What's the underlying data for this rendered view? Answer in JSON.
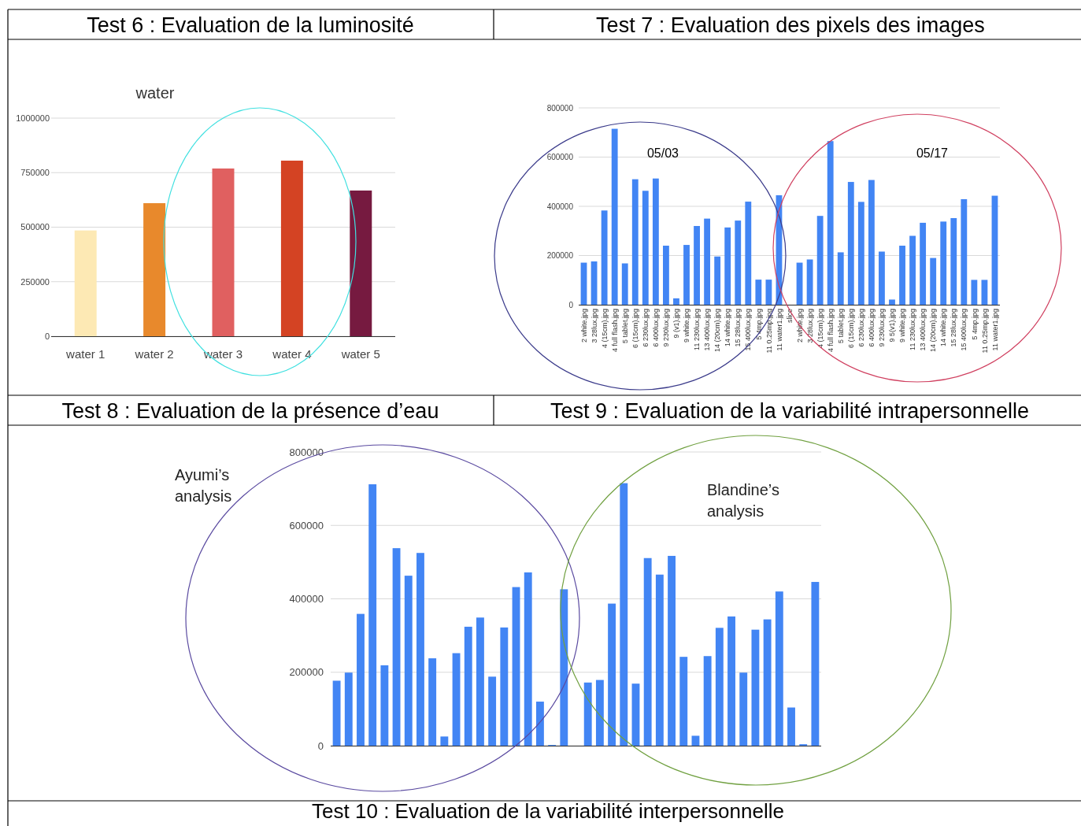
{
  "chart_data": [
    {
      "type": "bar",
      "title": "water",
      "categories": [
        "water 1",
        "water 2",
        "water 3",
        "water 4",
        "water 5"
      ],
      "values": [
        485000,
        610000,
        769000,
        805000,
        668000
      ],
      "colors": [
        "#fde9b4",
        "#e8892c",
        "#e06060",
        "#d44323",
        "#761a40"
      ],
      "ylim": [
        0,
        1000000
      ],
      "yticks": [
        0,
        250000,
        500000,
        750000,
        1000000
      ],
      "grid": "y",
      "annotations": [
        "Test 6 : Evaluation de la luminosité"
      ]
    },
    {
      "type": "bar",
      "categories": [
        "2 white.jpg",
        "3 28lux.jpg",
        "4 (15cm).jpg",
        "4 full flash.jpg",
        "5 tablet.jpg",
        "6 (15cm).jpg",
        "6 230lux.jpg",
        "6 400lux.jpg",
        "9 230lux.jpg",
        "9 (v1).jpg",
        "9 white.jpg",
        "11 230lux.jpg",
        "13 400lux.jpg",
        "14 (20cm).jpg",
        "14 white.jpg",
        "15 28lux.jpg",
        "15 400lux.jpg",
        "5 4mp.jpg",
        "11 0.25mp.jpg",
        "11 water1.jpg",
        "slice",
        "2 white.jpg",
        "3 28lux.jpg",
        "4 (15cm).jpg",
        "4 full flash.jpg",
        "5 tablet.jpg",
        "6 (15cm).jpg",
        "6 230lux.jpg",
        "6 400lux.jpg",
        "9 230lux.jpg",
        "9 5(v1).jpg",
        "9 white.jpg",
        "11 230lux.jpg",
        "13 400lux.jpg",
        "14 (20cm).jpg",
        "14 white.jpg",
        "15 28lux.jpg",
        "15 400lux.jpg",
        "5 4mp.jpg",
        "11 0.25mp.jpg",
        "11 water1.jpg"
      ],
      "values": [
        171000,
        176000,
        383000,
        715000,
        168000,
        510000,
        463000,
        513000,
        240000,
        26000,
        243000,
        320000,
        350000,
        196000,
        314000,
        342000,
        419000,
        102000,
        102000,
        445000,
        null,
        171000,
        184000,
        361000,
        665000,
        213000,
        499000,
        418000,
        507000,
        216000,
        21000,
        240000,
        280000,
        333000,
        190000,
        338000,
        352000,
        429000,
        101000,
        101000,
        443000
      ],
      "color": "#4285f4",
      "ylim": [
        0,
        800000
      ],
      "yticks": [
        0,
        200000,
        400000,
        600000,
        800000
      ],
      "grid": "y",
      "annotations": [
        "Test 7 : Evaluation des pixels des images",
        "05/03",
        "05/17"
      ]
    },
    {
      "type": "bar",
      "categories": [
        null,
        null,
        null,
        null,
        null,
        null,
        null,
        null,
        null,
        null,
        null,
        null,
        null,
        null,
        null,
        null,
        null,
        null,
        null,
        null,
        null,
        null,
        null,
        null,
        null,
        null,
        null,
        null,
        null,
        null,
        null,
        null,
        null,
        null,
        null,
        null,
        null,
        null,
        null,
        null,
        null
      ],
      "values": [
        177000,
        199000,
        359000,
        712000,
        219000,
        538000,
        463000,
        525000,
        238000,
        25000,
        252000,
        324000,
        349000,
        188000,
        322000,
        432000,
        472000,
        120000,
        2000,
        426000,
        null,
        172000,
        179000,
        387000,
        715000,
        169000,
        511000,
        466000,
        517000,
        242000,
        27000,
        244000,
        321000,
        352000,
        199000,
        316000,
        344000,
        420000,
        104000,
        4000,
        446000
      ],
      "color": "#4285f4",
      "ylim": [
        0,
        800000
      ],
      "yticks": [
        0,
        200000,
        400000,
        600000,
        800000
      ],
      "grid": "y",
      "tick_labels": "y",
      "annotations": [
        "Test 8 : Evaluation de la présence d’eau",
        "Test 9 : Evaluation de la variabilité intrapersonnelle",
        "Test 10 : Evaluation de la variabilité interpersonnelle",
        "Ayumi’s analysis",
        "Blandine’s analysis"
      ]
    }
  ]
}
